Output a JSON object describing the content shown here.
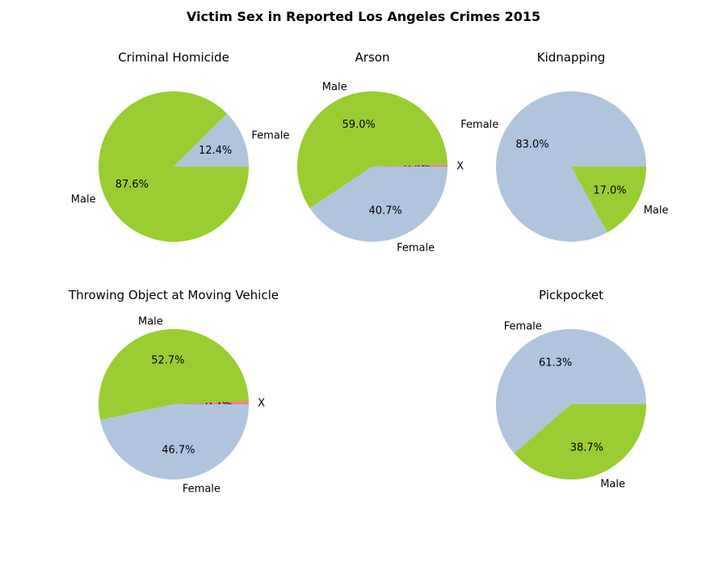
{
  "figure_title": "Victim Sex in Reported Los Angeles Crimes 2015",
  "colors": {
    "Male": "#9acd32",
    "Female": "#b0c4de",
    "X": "#f08080"
  },
  "chart_data": [
    {
      "type": "pie",
      "title": "Criminal Homicide",
      "slices": [
        {
          "label": "Female",
          "value": 12.4,
          "pct": "12.4%"
        },
        {
          "label": "Male",
          "value": 87.6,
          "pct": "87.6%"
        }
      ]
    },
    {
      "type": "pie",
      "title": "Arson",
      "slices": [
        {
          "label": "X",
          "value": 0.4,
          "pct": "0.4%"
        },
        {
          "label": "Male",
          "value": 59.0,
          "pct": "59.0%"
        },
        {
          "label": "Female",
          "value": 40.7,
          "pct": "40.7%"
        }
      ]
    },
    {
      "type": "pie",
      "title": "Kidnapping",
      "slices": [
        {
          "label": "Female",
          "value": 83.0,
          "pct": "83.0%"
        },
        {
          "label": "Male",
          "value": 17.0,
          "pct": "17.0%"
        }
      ]
    },
    {
      "type": "pie",
      "title": "Throwing Object at Moving Vehicle",
      "slices": [
        {
          "label": "X",
          "value": 0.7,
          "pct": "0.7%"
        },
        {
          "label": "Male",
          "value": 52.7,
          "pct": "52.7%"
        },
        {
          "label": "Female",
          "value": 46.7,
          "pct": "46.7%"
        }
      ]
    },
    {
      "type": "pie",
      "title": "Pickpocket",
      "slices": [
        {
          "label": "Female",
          "value": 61.3,
          "pct": "61.3%"
        },
        {
          "label": "Male",
          "value": 38.7,
          "pct": "38.7%"
        }
      ]
    }
  ]
}
